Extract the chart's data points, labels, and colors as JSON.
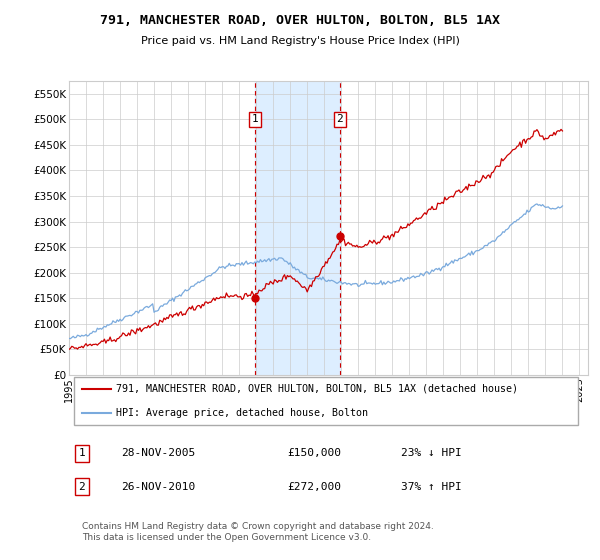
{
  "title": "791, MANCHESTER ROAD, OVER HULTON, BOLTON, BL5 1AX",
  "subtitle": "Price paid vs. HM Land Registry's House Price Index (HPI)",
  "footer": "Contains HM Land Registry data © Crown copyright and database right 2024.\nThis data is licensed under the Open Government Licence v3.0.",
  "legend_line1": "791, MANCHESTER ROAD, OVER HULTON, BOLTON, BL5 1AX (detached house)",
  "legend_line2": "HPI: Average price, detached house, Bolton",
  "transaction1_label": "1",
  "transaction1_date": "28-NOV-2005",
  "transaction1_price": "£150,000",
  "transaction1_hpi": "23% ↓ HPI",
  "transaction2_label": "2",
  "transaction2_date": "26-NOV-2010",
  "transaction2_price": "£272,000",
  "transaction2_hpi": "37% ↑ HPI",
  "hpi_color": "#7aaadd",
  "price_color": "#cc0000",
  "background_color": "#ffffff",
  "grid_color": "#cccccc",
  "shade_color": "#ddeeff",
  "ylim": [
    0,
    575000
  ],
  "yticks": [
    0,
    50000,
    100000,
    150000,
    200000,
    250000,
    300000,
    350000,
    400000,
    450000,
    500000,
    550000
  ],
  "ytick_labels": [
    "£0",
    "£50K",
    "£100K",
    "£150K",
    "£200K",
    "£250K",
    "£300K",
    "£350K",
    "£400K",
    "£450K",
    "£500K",
    "£550K"
  ],
  "transaction1_x": 2005.917,
  "transaction1_y": 150000,
  "transaction2_x": 2010.917,
  "transaction2_y": 272000,
  "xlim_left": 1995.0,
  "xlim_right": 2025.5
}
